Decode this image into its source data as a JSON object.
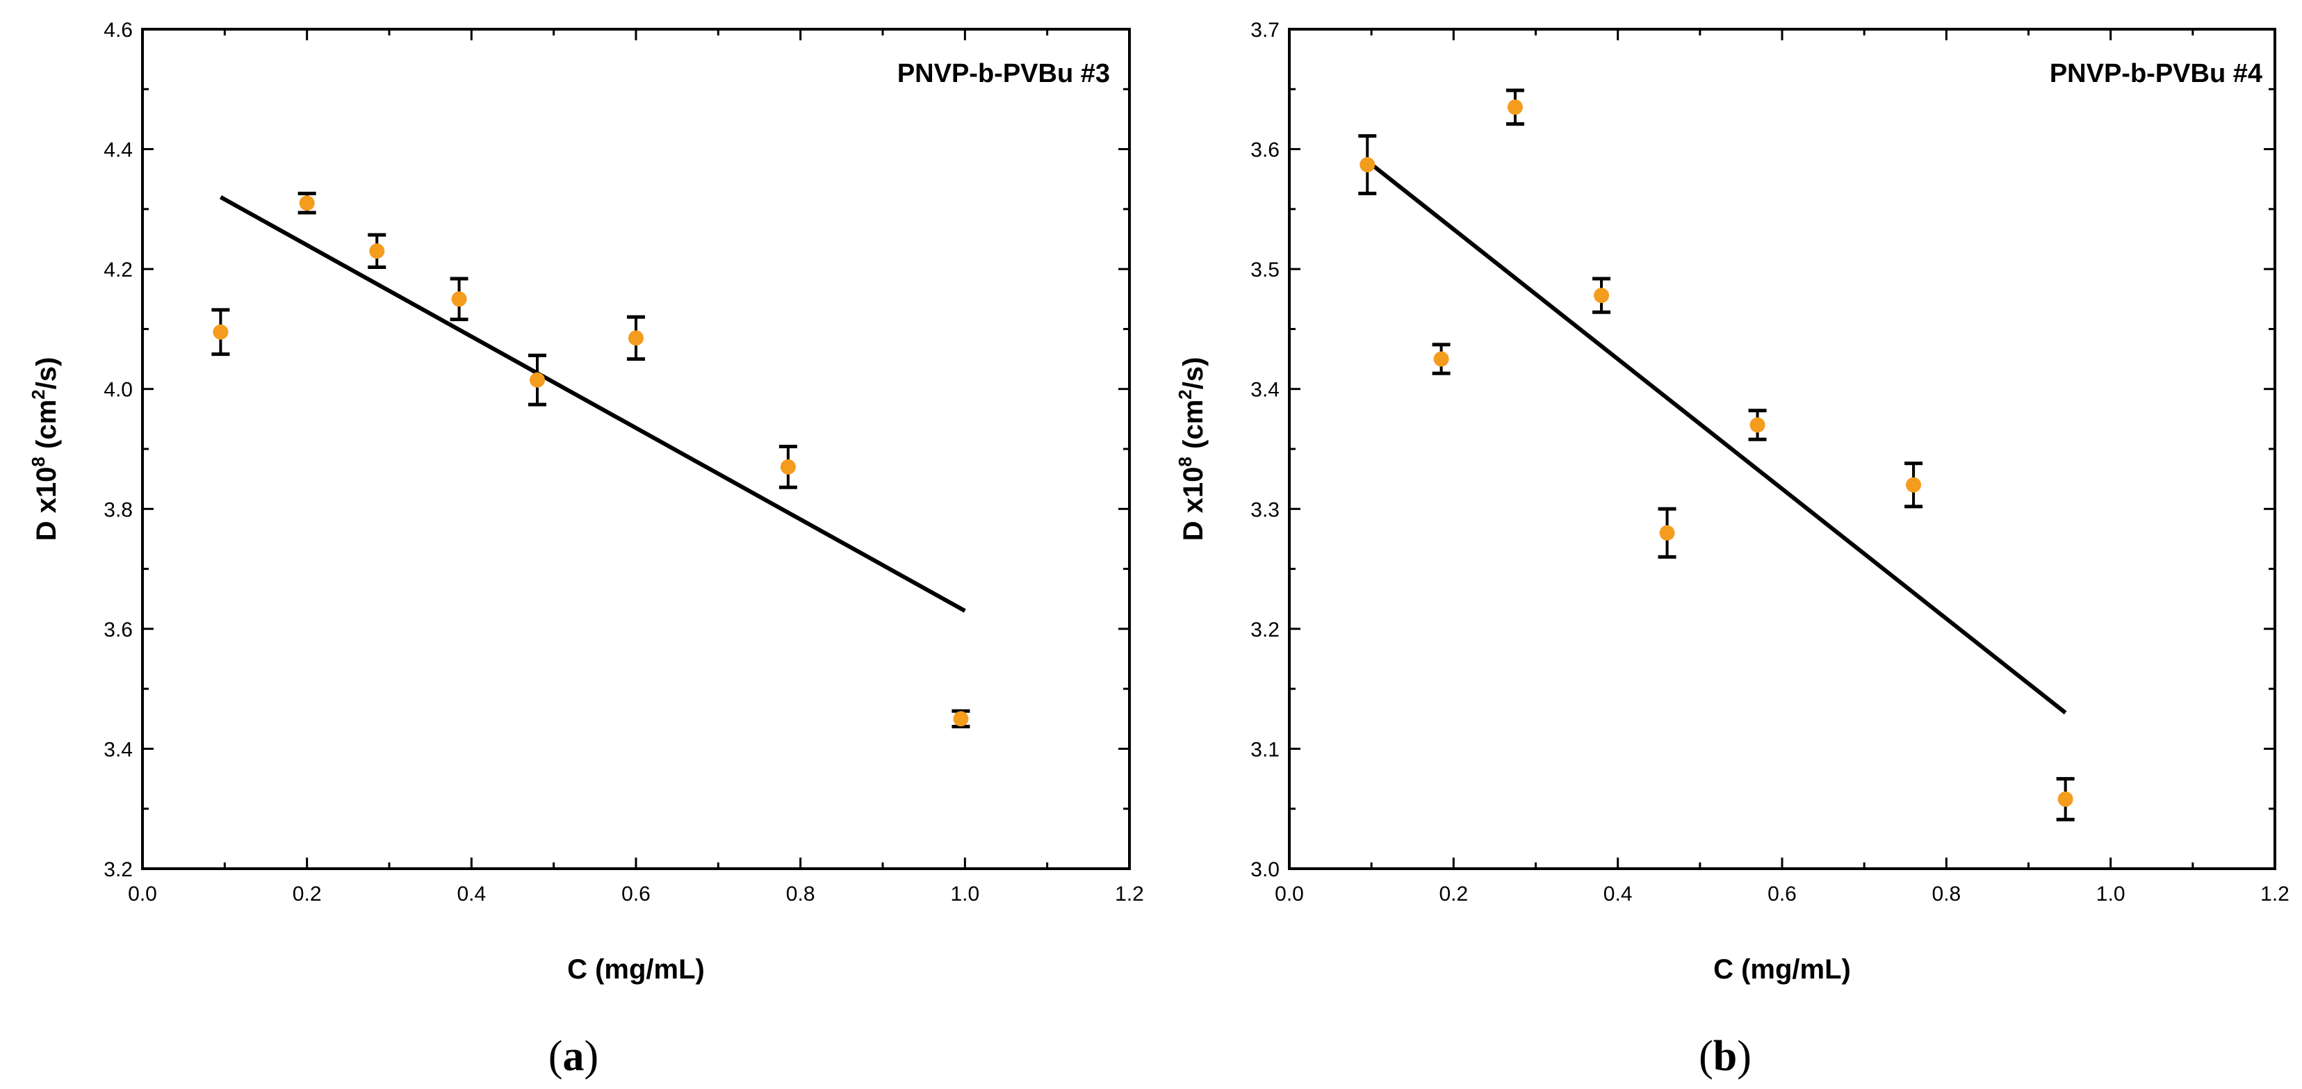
{
  "colors": {
    "marker": "#f39c1e",
    "line": "#000000",
    "axis": "#000000"
  },
  "chart_data": [
    {
      "type": "scatter",
      "title": "PNVP-b-PVBu #3",
      "caption_letter": "a",
      "xlabel": "C (mg/mL)",
      "ylabel_main": "D x10",
      "ylabel_exp1": "8",
      "ylabel_mid": " (cm",
      "ylabel_exp2": "2",
      "ylabel_end": "/s)",
      "xlim": [
        0.0,
        1.2
      ],
      "ylim": [
        3.2,
        4.6
      ],
      "xticks": [
        0.0,
        0.2,
        0.4,
        0.6,
        0.8,
        1.0,
        1.2
      ],
      "yticks": [
        3.2,
        3.4,
        3.6,
        3.8,
        4.0,
        4.2,
        4.4,
        4.6
      ],
      "xtick_labels": [
        "0.0",
        "0.2",
        "0.4",
        "0.6",
        "0.8",
        "1.0",
        "1.2"
      ],
      "ytick_labels": [
        "3.2",
        "3.4",
        "3.6",
        "3.8",
        "4.0",
        "4.2",
        "4.4",
        "4.6"
      ],
      "points": [
        {
          "x": 0.095,
          "y": 4.095,
          "err": 0.037
        },
        {
          "x": 0.2,
          "y": 4.31,
          "err": 0.016
        },
        {
          "x": 0.285,
          "y": 4.23,
          "err": 0.027
        },
        {
          "x": 0.385,
          "y": 4.15,
          "err": 0.034
        },
        {
          "x": 0.48,
          "y": 4.015,
          "err": 0.041
        },
        {
          "x": 0.6,
          "y": 4.085,
          "err": 0.035
        },
        {
          "x": 0.785,
          "y": 3.87,
          "err": 0.034
        },
        {
          "x": 0.995,
          "y": 3.45,
          "err": 0.013
        }
      ],
      "fit_line": {
        "x": [
          0.095,
          1.0
        ],
        "y": [
          4.32,
          3.63
        ]
      }
    },
    {
      "type": "scatter",
      "title": "PNVP-b-PVBu #4",
      "caption_letter": "b",
      "xlabel": "C (mg/mL)",
      "ylabel_main": "D x10",
      "ylabel_exp1": "8",
      "ylabel_mid": " (cm",
      "ylabel_exp2": "2",
      "ylabel_end": "/s)",
      "xlim": [
        0.0,
        1.2
      ],
      "ylim": [
        3.0,
        3.7
      ],
      "xticks": [
        0.0,
        0.2,
        0.4,
        0.6,
        0.8,
        1.0,
        1.2
      ],
      "yticks": [
        3.0,
        3.1,
        3.2,
        3.3,
        3.4,
        3.5,
        3.6,
        3.7
      ],
      "xtick_labels": [
        "0.0",
        "0.2",
        "0.4",
        "0.6",
        "0.8",
        "1.0",
        "1.2"
      ],
      "ytick_labels": [
        "3.0",
        "3.1",
        "3.2",
        "3.3",
        "3.4",
        "3.5",
        "3.6",
        "3.7"
      ],
      "points": [
        {
          "x": 0.095,
          "y": 3.587,
          "err": 0.024
        },
        {
          "x": 0.185,
          "y": 3.425,
          "err": 0.012
        },
        {
          "x": 0.275,
          "y": 3.635,
          "err": 0.014
        },
        {
          "x": 0.38,
          "y": 3.478,
          "err": 0.014
        },
        {
          "x": 0.46,
          "y": 3.28,
          "err": 0.02
        },
        {
          "x": 0.57,
          "y": 3.37,
          "err": 0.012
        },
        {
          "x": 0.76,
          "y": 3.32,
          "err": 0.018
        },
        {
          "x": 0.945,
          "y": 3.058,
          "err": 0.017
        }
      ],
      "fit_line": {
        "x": [
          0.095,
          0.945
        ],
        "y": [
          3.59,
          3.13
        ]
      }
    }
  ]
}
